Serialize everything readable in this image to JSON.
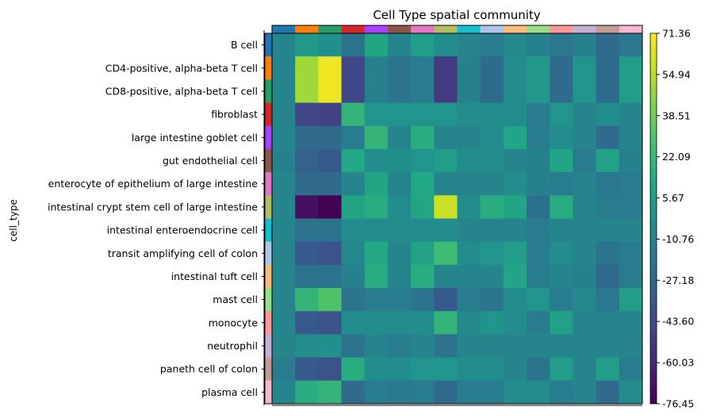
{
  "chart_data": {
    "type": "heatmap",
    "title": "Cell Type spatial community",
    "ylabel": "cell_type",
    "rows": [
      "B cell",
      "CD4-positive, alpha-beta T cell",
      "CD8-positive, alpha-beta T cell",
      "fibroblast",
      "large intestine goblet cell",
      "gut endothelial cell",
      "enterocyte of epithelium of large intestine",
      "intestinal crypt stem cell of large intestine",
      "intestinal enteroendocrine cell",
      "transit amplifying cell of colon",
      "intestinal tuft cell",
      "mast cell",
      "monocyte",
      "neutrophil",
      "paneth cell of colon",
      "plasma cell"
    ],
    "row_colors": [
      "#1f77b4",
      "#ff7f0e",
      "#279e68",
      "#d62728",
      "#aa40fc",
      "#8c564b",
      "#e377c2",
      "#b5bd61",
      "#17becf",
      "#aec7e8",
      "#ffbb78",
      "#98df8a",
      "#ff9896",
      "#c5b0d5",
      "#c49c94",
      "#f7b6d2"
    ],
    "values": [
      [
        -10,
        2,
        -3,
        -20,
        10,
        -10,
        5,
        -5,
        -10,
        -15,
        -8,
        -12,
        -18,
        -12,
        -25,
        -18
      ],
      [
        -10,
        50,
        68,
        -45,
        -12,
        -20,
        -15,
        -52,
        -12,
        -25,
        -5,
        2,
        -25,
        0,
        -25,
        5
      ],
      [
        -10,
        50,
        68,
        -45,
        -12,
        -20,
        -15,
        -52,
        -12,
        -25,
        -5,
        2,
        -25,
        0,
        -25,
        5
      ],
      [
        -10,
        -45,
        -48,
        20,
        0,
        0,
        0,
        0,
        -5,
        -5,
        -5,
        -15,
        0,
        -10,
        -5,
        -10
      ],
      [
        -10,
        -25,
        -25,
        -15,
        20,
        -10,
        15,
        -10,
        -10,
        -5,
        10,
        -15,
        -5,
        -10,
        -25,
        -10
      ],
      [
        -12,
        -30,
        -35,
        12,
        -5,
        -3,
        0,
        5,
        -5,
        -5,
        -10,
        -12,
        10,
        -15,
        8,
        -12
      ],
      [
        -10,
        -25,
        -25,
        -10,
        10,
        -10,
        12,
        -10,
        -10,
        -10,
        -5,
        -12,
        -15,
        -10,
        -18,
        -15
      ],
      [
        -10,
        -70,
        -76,
        10,
        15,
        -5,
        10,
        60,
        -5,
        15,
        10,
        -22,
        15,
        -10,
        -15,
        -15
      ],
      [
        -10,
        -20,
        -20,
        -5,
        -5,
        -5,
        -5,
        -5,
        -10,
        -10,
        -10,
        -15,
        -10,
        -10,
        -10,
        -10
      ],
      [
        -10,
        -35,
        -38,
        -8,
        12,
        -10,
        8,
        25,
        -5,
        0,
        5,
        -15,
        -5,
        -10,
        -20,
        -15
      ],
      [
        -10,
        -20,
        -20,
        -12,
        15,
        -10,
        15,
        -10,
        -10,
        -10,
        10,
        -15,
        -10,
        -12,
        -25,
        -15
      ],
      [
        -10,
        20,
        30,
        -20,
        -15,
        -15,
        -20,
        -35,
        -15,
        -20,
        -5,
        0,
        -15,
        -8,
        -18,
        5
      ],
      [
        -10,
        -35,
        -38,
        -5,
        -5,
        -5,
        -5,
        20,
        -8,
        0,
        -5,
        -15,
        8,
        -10,
        -10,
        -10
      ],
      [
        -10,
        -5,
        -3,
        -20,
        -10,
        -15,
        -10,
        -20,
        -10,
        -10,
        -10,
        -10,
        -10,
        -10,
        -10,
        -10
      ],
      [
        -15,
        -35,
        -38,
        15,
        -5,
        -5,
        0,
        0,
        -5,
        -5,
        -10,
        -20,
        5,
        -10,
        5,
        -15
      ],
      [
        -10,
        15,
        20,
        -25,
        -15,
        -18,
        -15,
        -25,
        -15,
        -15,
        -5,
        -5,
        -15,
        -10,
        -25,
        -5
      ]
    ],
    "colorbar": {
      "colormap": "viridis",
      "vmin": -76.45,
      "vmax": 71.36,
      "ticks": [
        "71.36",
        "54.94",
        "38.51",
        "22.09",
        "5.67",
        "-10.76",
        "-27.18",
        "-43.60",
        "-60.03",
        "-76.45"
      ]
    }
  }
}
